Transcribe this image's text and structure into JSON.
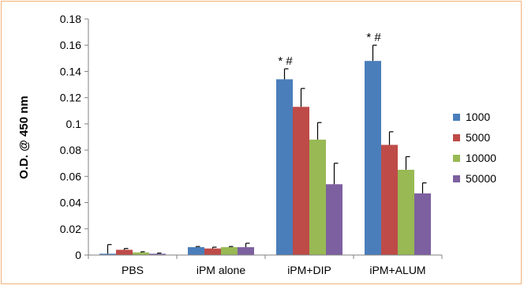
{
  "chart_data": {
    "type": "bar",
    "title": "",
    "xlabel": "",
    "ylabel": "O.D. @ 450 nm",
    "ylim": [
      0,
      0.18
    ],
    "yticks": [
      0,
      0.02,
      0.04,
      0.06,
      0.08,
      0.1,
      0.12,
      0.14,
      0.16,
      0.18
    ],
    "ytick_labels": [
      "0",
      "0.02",
      "0.04",
      "0.06",
      "0.08",
      "0.1",
      "0.12",
      "0.14",
      "0.16",
      "0.18"
    ],
    "grid": false,
    "legend_position": "right",
    "categories": [
      "PBS",
      "iPM alone",
      "iPM+DIP",
      "iPM+ALUM"
    ],
    "series": [
      {
        "name": "1000",
        "color": "#4a7ebb",
        "values": [
          0.001,
          0.006,
          0.134,
          0.148
        ],
        "errors": [
          0.007,
          0.0005,
          0.008,
          0.012
        ]
      },
      {
        "name": "5000",
        "color": "#be4b48",
        "values": [
          0.004,
          0.005,
          0.113,
          0.084
        ],
        "errors": [
          0.001,
          0.001,
          0.014,
          0.01
        ]
      },
      {
        "name": "10000",
        "color": "#98b954",
        "values": [
          0.002,
          0.006,
          0.088,
          0.065
        ],
        "errors": [
          0.0005,
          0.0005,
          0.013,
          0.01
        ]
      },
      {
        "name": "50000",
        "color": "#7d60a0",
        "values": [
          0.001,
          0.006,
          0.054,
          0.047
        ],
        "errors": [
          0.0005,
          0.003,
          0.016,
          0.008
        ]
      }
    ],
    "annotations": [
      {
        "category": "iPM+DIP",
        "series": "1000",
        "text": "* #"
      },
      {
        "category": "iPM+ALUM",
        "series": "1000",
        "text": "* #"
      }
    ]
  }
}
